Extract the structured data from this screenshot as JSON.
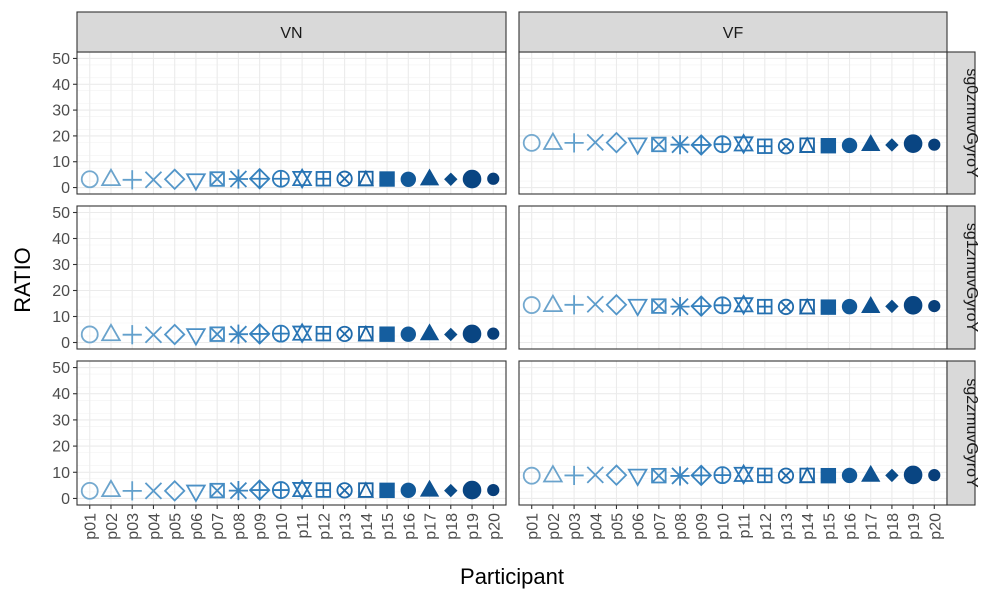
{
  "chart_data": {
    "type": "scatter",
    "xlabel": "Participant",
    "ylabel": "RATIO",
    "ylim": [
      -2.5,
      52.5
    ],
    "yticks": [
      0,
      10,
      20,
      30,
      40,
      50
    ],
    "categories": [
      "p01",
      "p02",
      "p03",
      "p04",
      "p05",
      "p06",
      "p07",
      "p08",
      "p09",
      "p10",
      "p11",
      "p12",
      "p13",
      "p14",
      "p15",
      "p16",
      "p17",
      "p18",
      "p19",
      "p20"
    ],
    "col_facets": [
      "VN",
      "VF"
    ],
    "row_facets": [
      "sg0zmuvGyroY",
      "sg1zmuvGyroY",
      "sg2zmuvGyroY"
    ],
    "grid": true,
    "legend": "none",
    "shapes": [
      "open-circle",
      "open-triangle",
      "plus",
      "cross",
      "open-diamond",
      "open-triangle-down",
      "square-cross",
      "asterisk",
      "diamond-plus",
      "circle-plus",
      "triangles-up-down",
      "square-plus",
      "circle-cross",
      "square-triangle",
      "filled-square",
      "filled-circle",
      "filled-triangle",
      "filled-diamond-small",
      "filled-circle-large",
      "filled-circle-small"
    ],
    "colors": [
      "#74a9cf",
      "#6aa3cc",
      "#62a0cc",
      "#5b9bcb",
      "#5396c9",
      "#4d91c6",
      "#458cc3",
      "#3d86c0",
      "#3581bd",
      "#2f7bb9",
      "#2975b5",
      "#2470b0",
      "#1f6aab",
      "#1a64a5",
      "#155e9f",
      "#115898",
      "#0e5291",
      "#0b4c89",
      "#094582",
      "#083f7a"
    ],
    "panels": [
      {
        "row": "sg0zmuvGyroY",
        "col": "VN",
        "values": [
          3.2,
          3.5,
          3.0,
          3.0,
          3.2,
          2.6,
          3.3,
          3.3,
          3.4,
          3.4,
          3.5,
          3.4,
          3.4,
          3.5,
          3.3,
          3.2,
          3.6,
          3.2,
          3.3,
          3.4
        ]
      },
      {
        "row": "sg0zmuvGyroY",
        "col": "VF",
        "values": [
          17.3,
          17.5,
          17.3,
          17.5,
          17.4,
          16.5,
          16.7,
          16.6,
          16.5,
          16.8,
          16.9,
          16.0,
          16.0,
          16.4,
          16.2,
          16.3,
          16.9,
          16.5,
          17.0,
          16.6
        ]
      },
      {
        "row": "sg1zmuvGyroY",
        "col": "VN",
        "values": [
          3.1,
          3.4,
          3.0,
          3.0,
          3.1,
          2.6,
          3.2,
          3.2,
          3.3,
          3.4,
          3.6,
          3.4,
          3.3,
          3.4,
          3.2,
          3.2,
          3.6,
          3.1,
          3.3,
          3.4
        ]
      },
      {
        "row": "sg1zmuvGyroY",
        "col": "VF",
        "values": [
          14.4,
          14.6,
          14.5,
          14.7,
          14.5,
          13.9,
          14.0,
          13.8,
          14.0,
          14.3,
          14.5,
          13.8,
          13.7,
          13.8,
          13.6,
          13.8,
          14.1,
          13.9,
          14.3,
          14.0
        ]
      },
      {
        "row": "sg2zmuvGyroY",
        "col": "VN",
        "values": [
          2.9,
          3.4,
          2.9,
          2.9,
          2.9,
          2.4,
          3.0,
          3.0,
          3.2,
          3.2,
          3.4,
          3.2,
          3.1,
          3.2,
          3.1,
          3.1,
          3.4,
          3.0,
          3.2,
          3.2
        ]
      },
      {
        "row": "sg2zmuvGyroY",
        "col": "VF",
        "values": [
          8.7,
          9.0,
          8.8,
          9.0,
          8.9,
          8.5,
          8.7,
          8.6,
          8.8,
          8.9,
          9.2,
          8.8,
          8.7,
          8.8,
          8.7,
          8.8,
          9.1,
          8.8,
          9.0,
          8.9
        ]
      }
    ]
  }
}
